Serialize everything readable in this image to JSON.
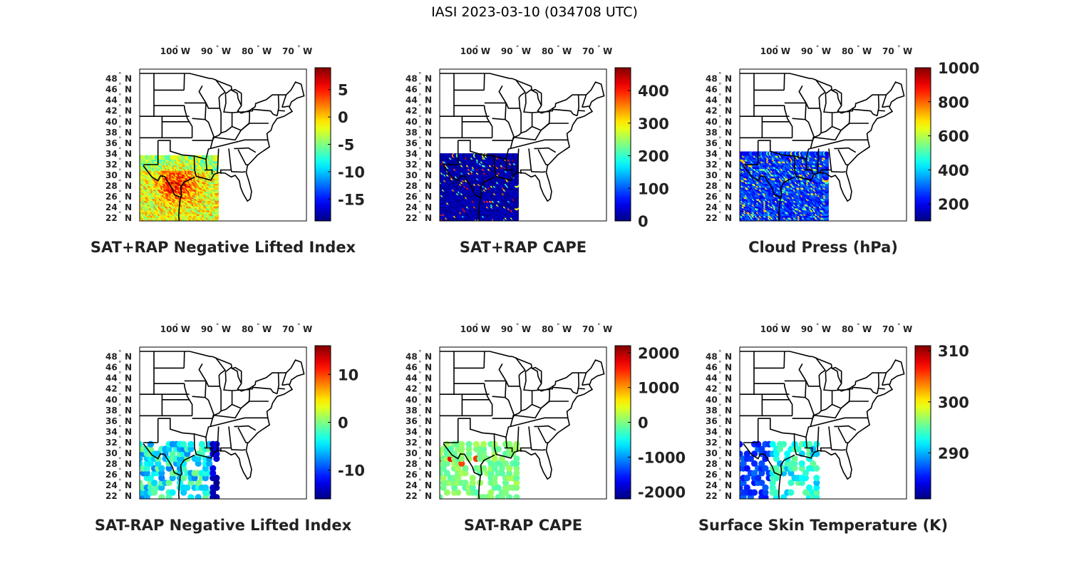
{
  "title": "IASI 2023-03-10 (034708 UTC)",
  "map_axes": {
    "lon_ticks": [
      "100",
      "90",
      "80",
      "70"
    ],
    "lon_hemisphere": "W",
    "lat_ticks": [
      "48",
      "46",
      "44",
      "42",
      "40",
      "38",
      "36",
      "34",
      "32",
      "30",
      "28",
      "26",
      "24",
      "22"
    ],
    "lat_hemisphere": "N",
    "degree_symbol": "°"
  },
  "colormap": "jet",
  "panels": [
    {
      "id": "li",
      "label": "SAT+RAP Negative Lifted Index",
      "colorbar": {
        "min": -19,
        "max": 9,
        "ticks": [
          "5",
          "0",
          "-5",
          "-10",
          "-15"
        ],
        "tick_values": [
          5,
          0,
          -5,
          -10,
          -15
        ]
      }
    },
    {
      "id": "cape",
      "label": "SAT+RAP CAPE",
      "colorbar": {
        "min": 0,
        "max": 470,
        "ticks": [
          "400",
          "300",
          "200",
          "100",
          "0"
        ],
        "tick_values": [
          400,
          300,
          200,
          100,
          0
        ]
      }
    },
    {
      "id": "cldp",
      "label": "Cloud Press (hPa)",
      "colorbar": {
        "min": 100,
        "max": 1000,
        "ticks": [
          "1000",
          "800",
          "600",
          "400",
          "200"
        ],
        "tick_values": [
          1000,
          800,
          600,
          400,
          200
        ]
      }
    },
    {
      "id": "dli",
      "label": "SAT-RAP Negative Lifted Index",
      "colorbar": {
        "min": -16,
        "max": 16,
        "ticks": [
          "10",
          "0",
          "-10"
        ],
        "tick_values": [
          10,
          0,
          -10
        ]
      }
    },
    {
      "id": "dcape",
      "label": "SAT-RAP CAPE",
      "colorbar": {
        "min": -2200,
        "max": 2200,
        "ticks": [
          "2000",
          "1000",
          "0",
          "-1000",
          "-2000"
        ],
        "tick_values": [
          2000,
          1000,
          0,
          -1000,
          -2000
        ]
      }
    },
    {
      "id": "skint",
      "label": "Surface Skin Temperature (K)",
      "colorbar": {
        "min": 281,
        "max": 311,
        "ticks": [
          "310",
          "300",
          "290"
        ],
        "tick_values": [
          310,
          300,
          290
        ]
      }
    }
  ]
}
